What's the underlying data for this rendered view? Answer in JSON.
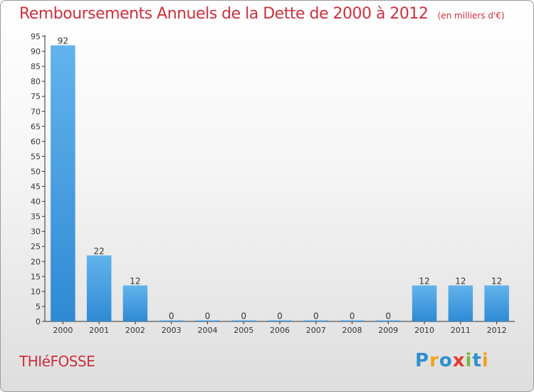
{
  "title": "Remboursements Annuels de la Dette de 2000 à 2012",
  "subtitle": "(en milliers d'€)",
  "commune": "THIéFOSSE",
  "logo": {
    "letters": [
      "P",
      "r",
      "o",
      "x",
      "i",
      "t",
      "i"
    ],
    "colors": [
      "#2f8fd0",
      "#f2a21b",
      "#2f8fd0",
      "#e23b2e",
      "#7ab640",
      "#2f8fd0",
      "#f2a21b"
    ]
  },
  "colors": {
    "bar": "#2f8ad4",
    "bar_light": "#62b3ec",
    "accent_text": "#c8313f"
  },
  "chart_data": {
    "type": "bar",
    "categories": [
      "2000",
      "2001",
      "2002",
      "2003",
      "2004",
      "2005",
      "2006",
      "2007",
      "2008",
      "2009",
      "2010",
      "2011",
      "2012"
    ],
    "values": [
      92,
      22,
      12,
      0,
      0,
      0,
      0,
      0,
      0,
      0,
      12,
      12,
      12
    ],
    "ylim": [
      0,
      95
    ],
    "yticks": [
      0,
      5,
      10,
      15,
      20,
      25,
      30,
      35,
      40,
      45,
      50,
      55,
      60,
      65,
      70,
      75,
      80,
      85,
      90,
      95
    ],
    "grid": false,
    "legend": "none"
  }
}
